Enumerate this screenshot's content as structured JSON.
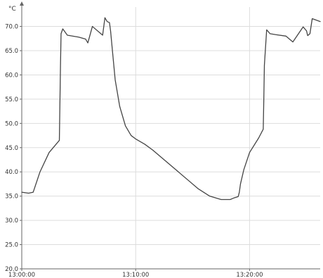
{
  "chart_data": {
    "type": "line",
    "title": "",
    "xlabel": "",
    "ylabel": "°C",
    "x_unit": "minutes",
    "ylim": [
      20,
      74
    ],
    "xlim": [
      0,
      26.2
    ],
    "grid": true,
    "y_ticks": [
      20.0,
      25.0,
      30.0,
      35.0,
      40.0,
      45.0,
      50.0,
      55.0,
      60.0,
      65.0,
      70.0
    ],
    "y_tick_labels": [
      "20.0",
      "25.0",
      "30.0",
      "35.0",
      "40.0",
      "45.0",
      "50.0",
      "55.0",
      "60.0",
      "65.0",
      "70.0"
    ],
    "x_ticks": [
      0,
      10,
      20
    ],
    "x_tick_labels": [
      "13:00:00",
      "13:10:00",
      "13:20:00"
    ],
    "colors": {
      "line": "#444444",
      "grid": "#dddddd",
      "axis": "#666666"
    },
    "series": [
      {
        "x": [
          0,
          0.6,
          1.0,
          1.6,
          2.4,
          3.3,
          3.4,
          3.45,
          3.6,
          4.0,
          5.0,
          5.6,
          5.8,
          6.2,
          7.1,
          7.3,
          7.5,
          7.7,
          7.8,
          8.0,
          8.2,
          8.6,
          9.1,
          9.6,
          10.0,
          10.8,
          11.5,
          12.5,
          13.5,
          14.5,
          15.5,
          16.5,
          17.5,
          18.3,
          18.6,
          19.0,
          19.1,
          19.2,
          19.5,
          20.0,
          20.8,
          21.2,
          21.25,
          21.3,
          21.5,
          21.8,
          22.3,
          23.2,
          23.6,
          23.8,
          24.7,
          25.0,
          25.1,
          25.3,
          25.5,
          26.2
        ],
        "y": [
          35.8,
          35.6,
          35.8,
          40.0,
          44.0,
          46.5,
          62.0,
          68.5,
          69.5,
          68.2,
          67.8,
          67.4,
          66.6,
          70.0,
          68.2,
          71.8,
          71.0,
          70.8,
          69.0,
          64.0,
          59.0,
          53.5,
          49.5,
          47.5,
          46.8,
          45.7,
          44.5,
          42.5,
          40.5,
          38.5,
          36.5,
          35.0,
          34.3,
          34.3,
          34.6,
          34.9,
          35.8,
          37.5,
          40.5,
          44.0,
          47.0,
          48.8,
          55.0,
          62.0,
          69.3,
          68.5,
          68.3,
          68.0,
          67.2,
          66.8,
          69.9,
          69.1,
          68.1,
          68.5,
          71.6,
          71.0
        ]
      }
    ]
  }
}
